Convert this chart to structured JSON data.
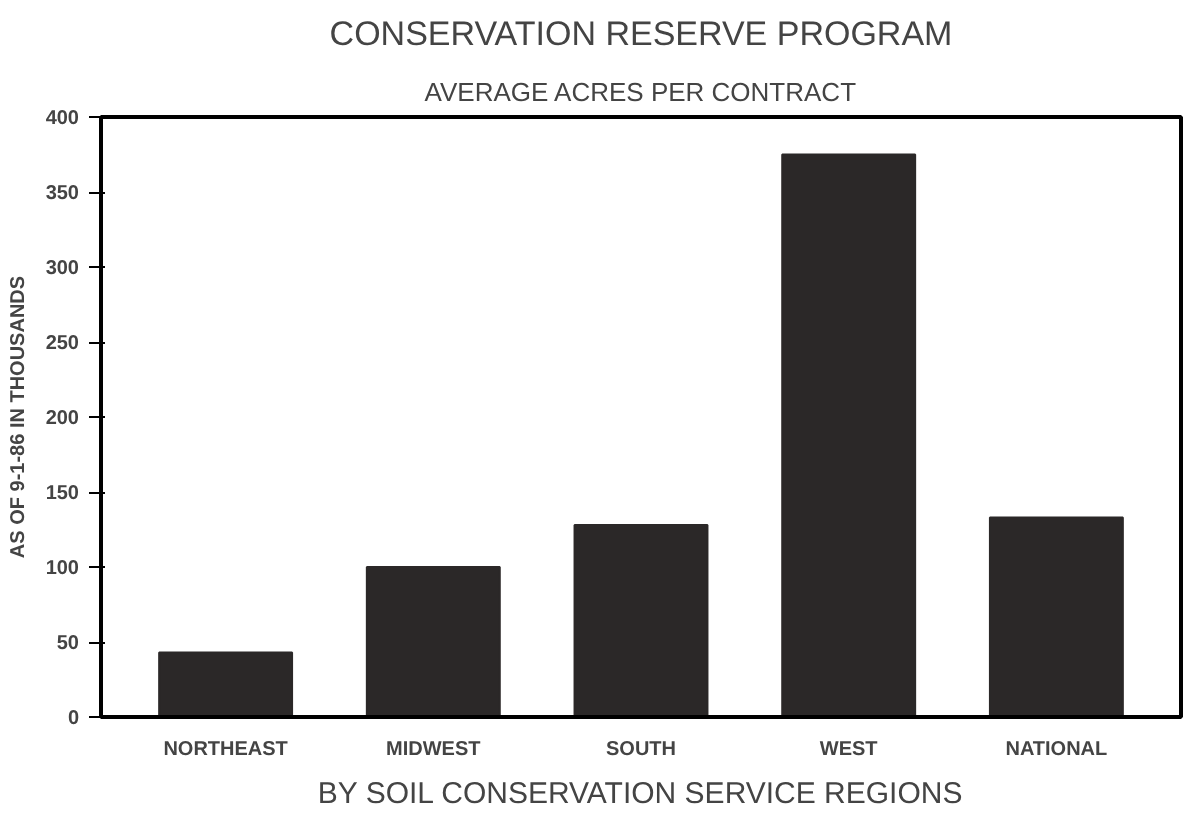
{
  "chart_data": {
    "type": "bar",
    "title": "CONSERVATION RESERVE PROGRAM",
    "subtitle": "AVERAGE ACRES PER CONTRACT",
    "xlabel": "BY SOIL CONSERVATION SERVICE REGIONS",
    "ylabel": "AS OF 9-1-86 IN THOUSANDS",
    "categories": [
      "NORTHEAST",
      "MIDWEST",
      "SOUTH",
      "WEST",
      "NATIONAL"
    ],
    "values": [
      43,
      100,
      128,
      375,
      133
    ],
    "color": "#2b2828",
    "ylim": [
      0,
      400
    ],
    "yticks": [
      0,
      50,
      100,
      150,
      200,
      250,
      300,
      350,
      400
    ],
    "grid": false
  }
}
